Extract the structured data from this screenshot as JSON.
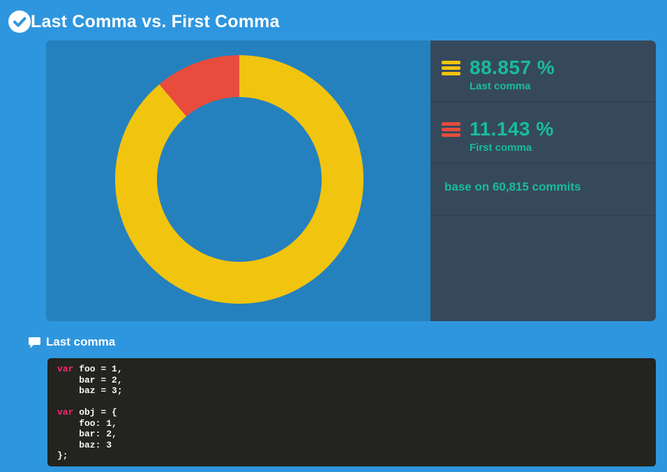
{
  "header": {
    "title": "Last Comma vs. First Comma"
  },
  "chart_data": {
    "type": "pie",
    "subtype": "donut",
    "title": "Last Comma vs. First Comma",
    "labels": [
      "Last comma",
      "First comma"
    ],
    "values": [
      88.857,
      11.143
    ],
    "unit": "%",
    "colors": [
      "#f1c40f",
      "#e74c3c"
    ],
    "start_angle_deg": 0,
    "direction": "clockwise",
    "base_note": "base on 60,815 commits",
    "total_commits": "60,815",
    "legend_position": "right"
  },
  "legend": {
    "items": [
      {
        "value": "88.857 %",
        "label": "Last comma",
        "swatch_color": "#f1c40f"
      },
      {
        "value": "11.143 %",
        "label": "First comma",
        "swatch_color": "#e74c3c"
      }
    ],
    "note": "base on 60,815 commits"
  },
  "example": {
    "heading": "Last comma",
    "code_lines": [
      [
        {
          "text": "var",
          "type": "keyword"
        },
        {
          "text": " foo = 1,",
          "type": "plain"
        }
      ],
      [
        {
          "text": "    bar = 2,",
          "type": "plain"
        }
      ],
      [
        {
          "text": "    baz = 3;",
          "type": "plain"
        }
      ],
      [
        {
          "text": "",
          "type": "plain"
        }
      ],
      [
        {
          "text": "var",
          "type": "keyword"
        },
        {
          "text": " obj = {",
          "type": "plain"
        }
      ],
      [
        {
          "text": "    foo: 1,",
          "type": "plain"
        }
      ],
      [
        {
          "text": "    bar: 2,",
          "type": "plain"
        }
      ],
      [
        {
          "text": "    baz: 3",
          "type": "plain"
        }
      ],
      [
        {
          "text": "};",
          "type": "plain"
        }
      ]
    ]
  },
  "colors": {
    "page_bg": "#2e96de",
    "panel_bg": "#2581bd",
    "sidebar_bg": "#36495c",
    "divider": "#2c3e50",
    "accent_teal": "#1abc9c",
    "yellow": "#f1c40f",
    "red": "#e74c3c",
    "code_bg": "#23241f",
    "code_text": "#f8f8f2",
    "code_keyword": "#f92672"
  }
}
